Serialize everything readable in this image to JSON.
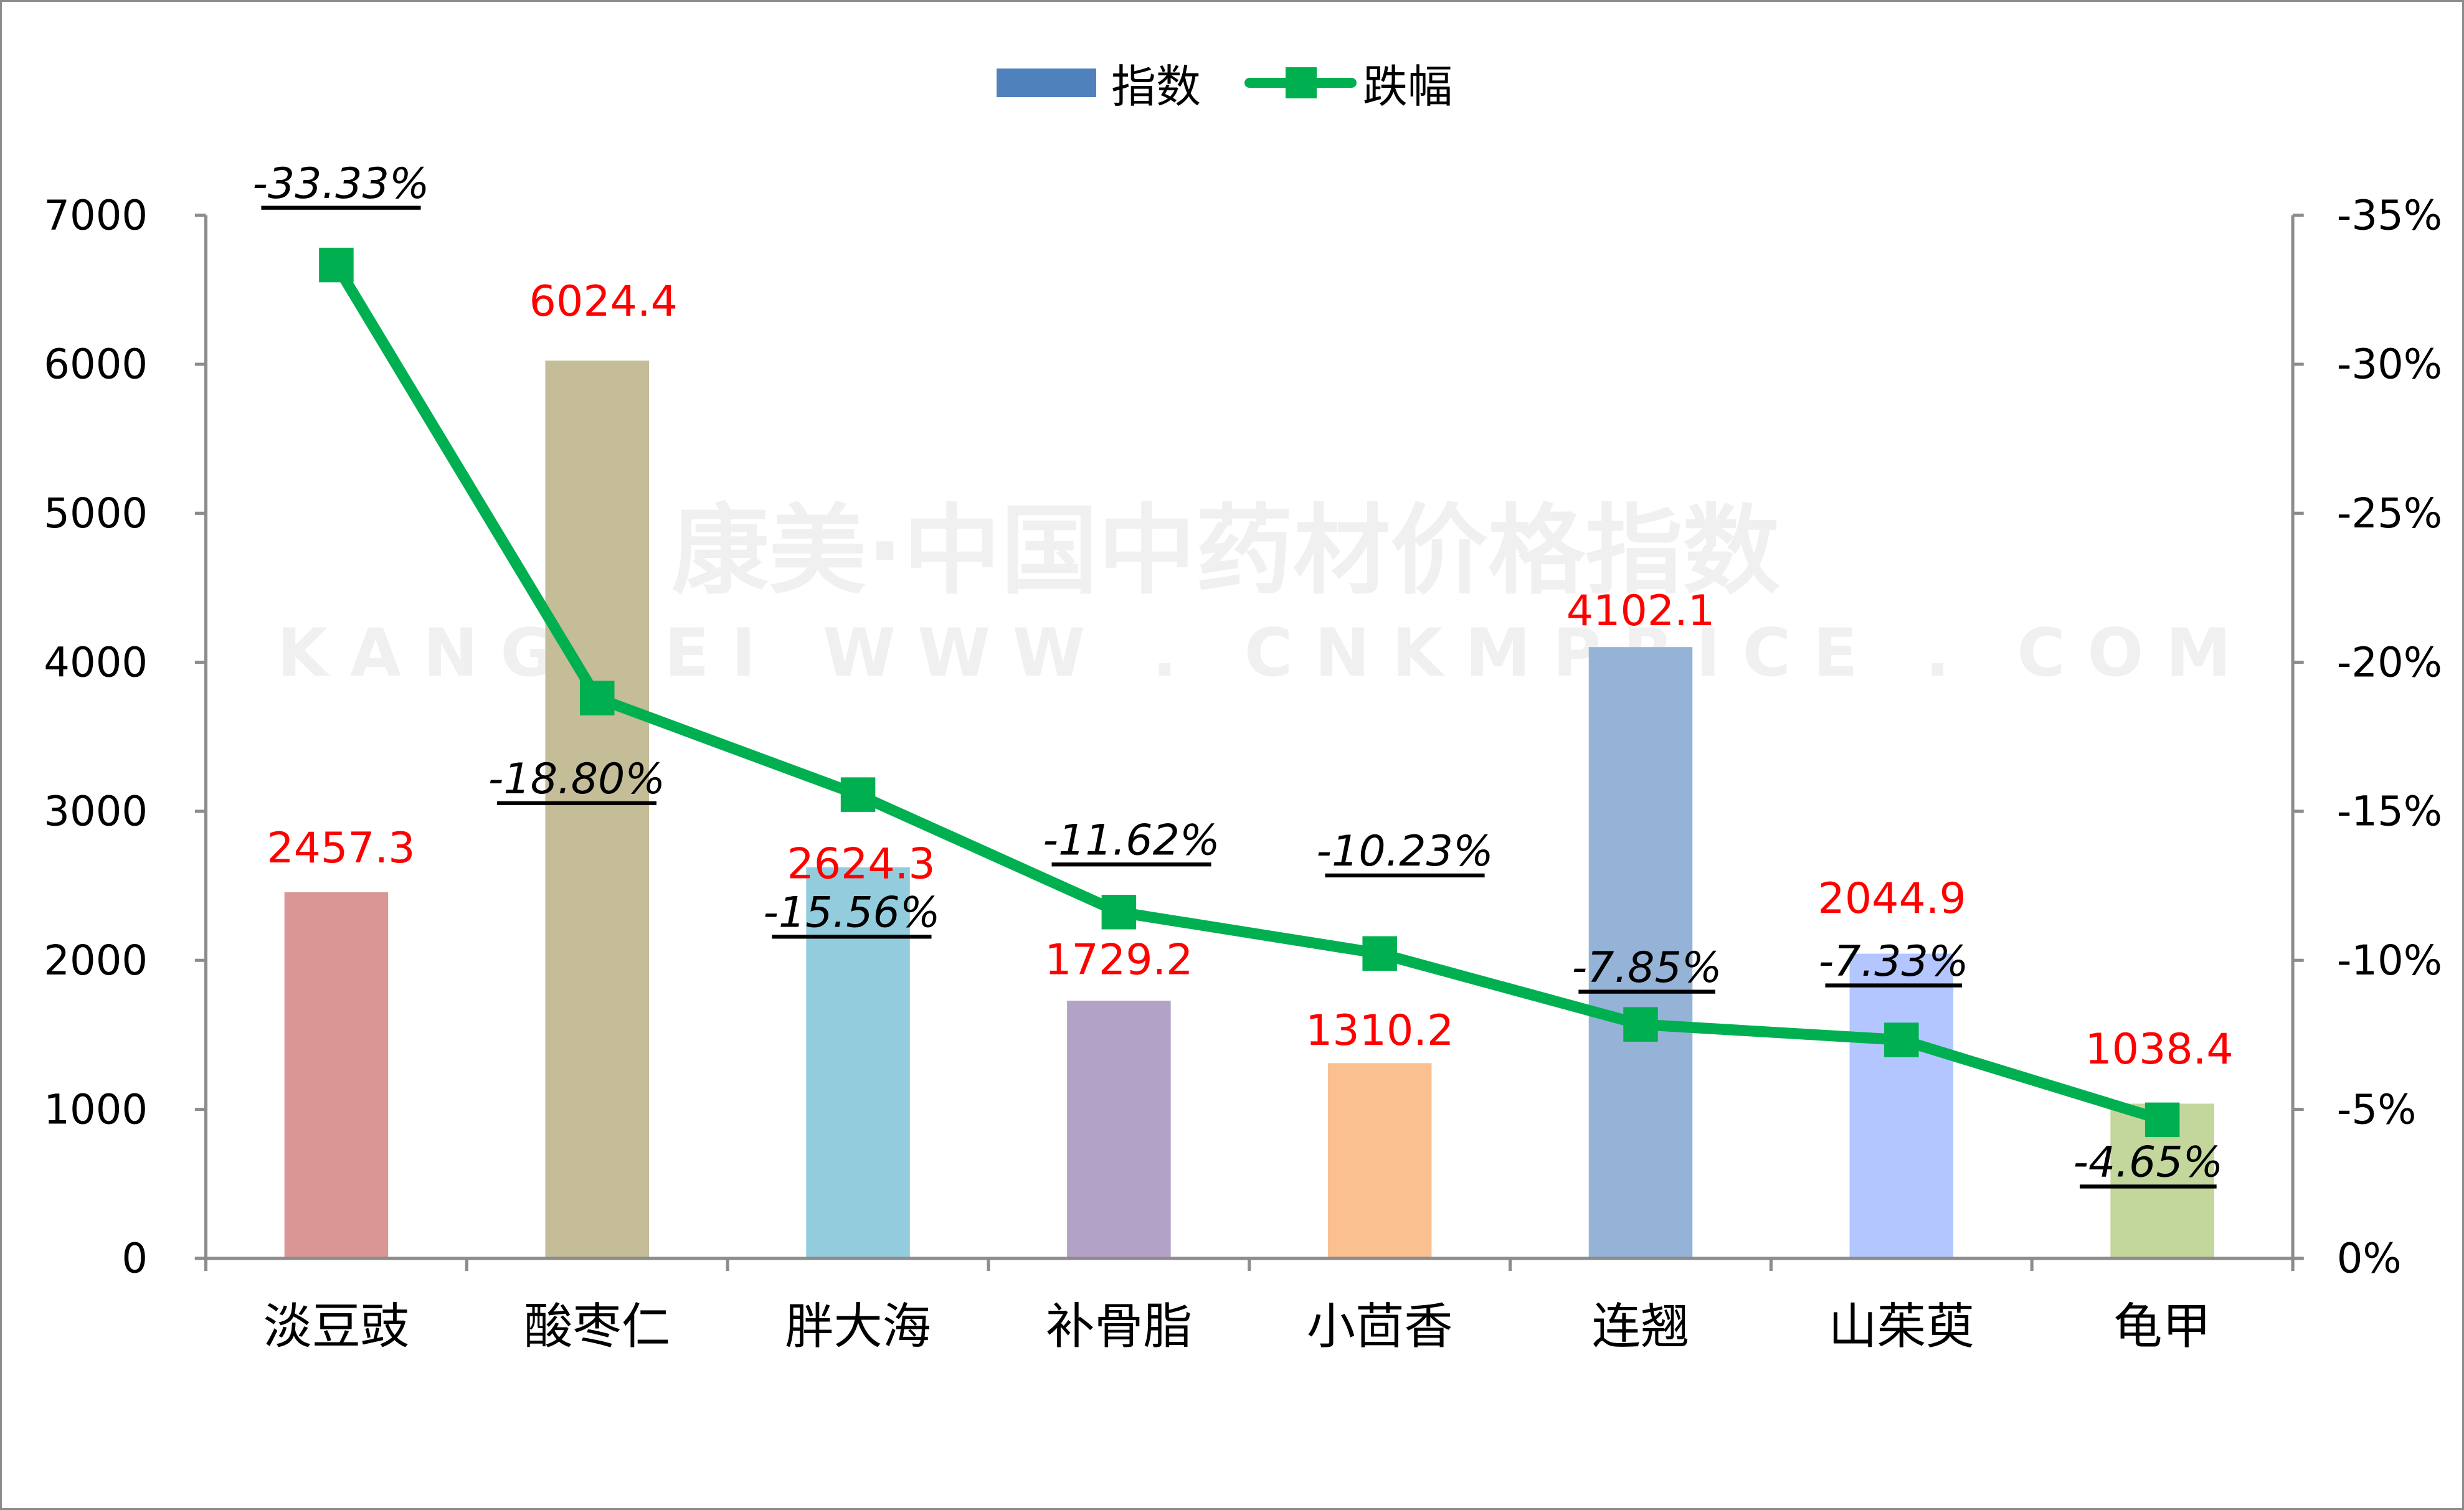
{
  "legend": {
    "bar_label": "指数",
    "line_label": "跌幅"
  },
  "watermark": {
    "line1": "康美·中国中药材价格指数",
    "line2": "KANGMEI WWW . CNKMPRICE . COM"
  },
  "colors": {
    "line": "#00b050",
    "value_label": "#ff0000",
    "axis": "#8c8c8c",
    "bars": [
      "#d99694",
      "#c4bd97",
      "#93cddd",
      "#b3a2c7",
      "#fac090",
      "#95b3d7",
      "#b3c6ff",
      "#c3d69b"
    ]
  },
  "chart_data": {
    "type": "bar+line",
    "title": "",
    "categories": [
      "淡豆豉",
      "酸枣仁",
      "胖大海",
      "补骨脂",
      "小茴香",
      "连翘",
      "山茱萸",
      "龟甲"
    ],
    "series": [
      {
        "name": "指数",
        "type": "bar",
        "axis": "left",
        "values": [
          2457.3,
          6024.4,
          2624.3,
          1729.2,
          1310.2,
          4102.1,
          2044.9,
          1038.4
        ],
        "labels": [
          "2457.3",
          "6024.4",
          "2624.3",
          "1729.2",
          "1310.2",
          "4102.1",
          "2044.9",
          "1038.4"
        ]
      },
      {
        "name": "跌幅",
        "type": "line",
        "axis": "right",
        "values": [
          -33.33,
          -18.8,
          -15.56,
          -11.62,
          -10.23,
          -7.85,
          -7.33,
          -4.65
        ],
        "labels": [
          "-33.33%",
          "-18.80%",
          "-15.56%",
          "-11.62%",
          "-10.23%",
          "-7.85%",
          "-7.33%",
          "-4.65%"
        ]
      }
    ],
    "left_axis": {
      "min": 0,
      "max": 7000,
      "step": 1000,
      "ticks": [
        "0",
        "1000",
        "2000",
        "3000",
        "4000",
        "5000",
        "6000",
        "7000"
      ]
    },
    "right_axis": {
      "min": 0,
      "max": -35,
      "step": -5,
      "reversed": true,
      "ticks": [
        "0%",
        "-5%",
        "-10%",
        "-15%",
        "-20%",
        "-25%",
        "-30%",
        "-35%"
      ]
    },
    "grid": false,
    "legend_position": "top"
  }
}
